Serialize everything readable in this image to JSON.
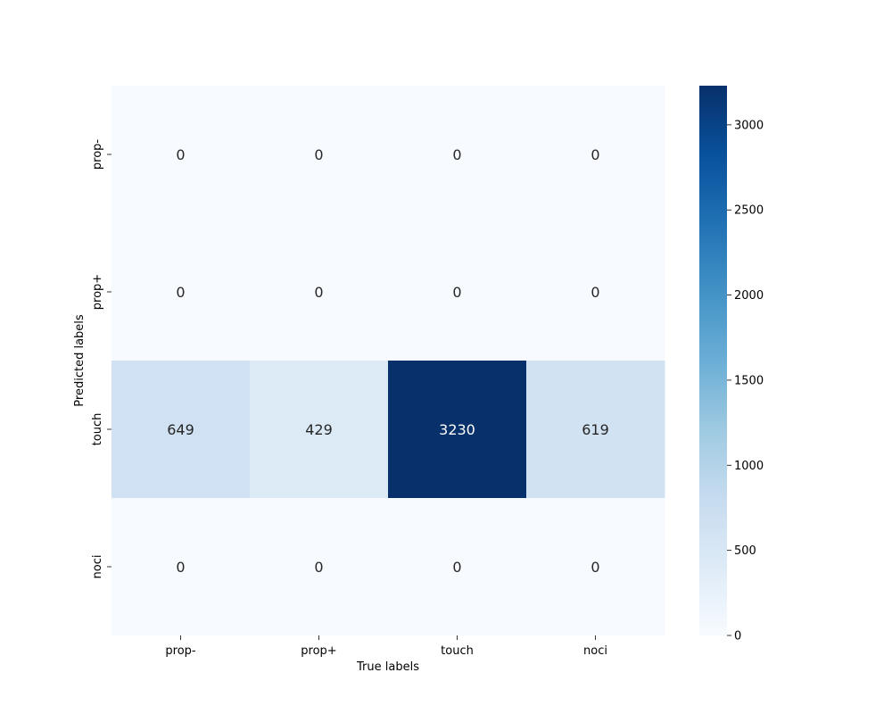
{
  "chart_data": {
    "type": "heatmap",
    "title": "",
    "xlabel": "True labels",
    "ylabel": "Predicted labels",
    "x_categories": [
      "prop-",
      "prop+",
      "touch",
      "noci"
    ],
    "y_categories": [
      "prop-",
      "prop+",
      "touch",
      "noci"
    ],
    "values": [
      [
        0,
        0,
        0,
        0
      ],
      [
        0,
        0,
        0,
        0
      ],
      [
        649,
        429,
        3230,
        619
      ],
      [
        0,
        0,
        0,
        0
      ]
    ],
    "colormap": "Blues",
    "colormap_low": "#f7fbff",
    "colormap_high": "#08306b",
    "colorbar": {
      "range": [
        0,
        3230
      ],
      "ticks": [
        0,
        500,
        1000,
        1500,
        2000,
        2500,
        3000
      ]
    },
    "annotation_dark_color": "#262626",
    "annotation_light_color": "#ffffff"
  }
}
